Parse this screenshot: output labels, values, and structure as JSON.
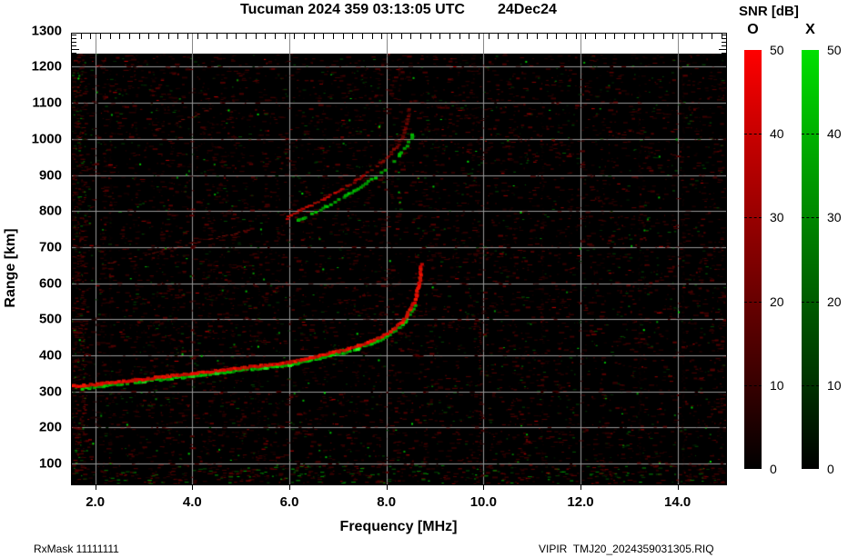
{
  "header": {
    "title_station": "Tucuman 2024 359 03:13:05 UTC",
    "title_date": "24Dec24",
    "snr_label": "SNR [dB]"
  },
  "footer": {
    "left": "RxMask 11111111",
    "right": "VIPIR  TMJ20_2024359031305.RIQ"
  },
  "colorbar": {
    "tick_labels": [
      "50",
      "40",
      "30",
      "20",
      "10",
      "0"
    ],
    "tick_values": [
      50,
      40,
      30,
      20,
      10,
      0
    ],
    "bars": [
      {
        "label": "O",
        "top_color": "#ff0000"
      },
      {
        "label": "X",
        "top_color": "#00e000"
      }
    ]
  },
  "chart_data": {
    "type": "heatmap",
    "title": "Tucuman 2024 359 03:13:05 UTC  24Dec24",
    "xlabel": "Frequency [MHz]",
    "ylabel": "Range [km]",
    "xlim": [
      1.5,
      15.0
    ],
    "ylim": [
      40,
      1295
    ],
    "data_region_top_km": 1237,
    "x_tick_values": [
      2,
      4,
      6,
      8,
      10,
      12,
      14
    ],
    "x_tick_labels": [
      "2.0",
      "4.0",
      "6.0",
      "8.0",
      "10.0",
      "12.0",
      "14.0"
    ],
    "x_minor_step": 0.2,
    "y_tick_values": [
      100,
      200,
      300,
      400,
      500,
      600,
      700,
      800,
      900,
      1000,
      1100,
      1200,
      1300
    ],
    "y_tick_labels": [
      "100",
      "200",
      "300",
      "400",
      "500",
      "600",
      "700",
      "800",
      "900",
      "1000",
      "1100",
      "1200",
      "1300"
    ],
    "y_minor_step": 10,
    "grid": true,
    "grid_color": "#999999",
    "background": "#000000",
    "legend": {
      "title": "SNR [dB]",
      "min": 0,
      "max": 50,
      "o_color": "red",
      "x_color": "green"
    },
    "traces": [
      {
        "name": "F-layer O-mode",
        "color": "red",
        "points": [
          [
            1.5,
            314
          ],
          [
            2.0,
            319
          ],
          [
            2.5,
            327
          ],
          [
            3.0,
            334
          ],
          [
            3.5,
            342
          ],
          [
            4.0,
            349
          ],
          [
            4.5,
            357
          ],
          [
            5.0,
            365
          ],
          [
            5.5,
            372
          ],
          [
            6.0,
            380
          ],
          [
            6.5,
            395
          ],
          [
            7.0,
            410
          ],
          [
            7.4,
            424
          ],
          [
            7.6,
            434
          ],
          [
            7.9,
            452
          ],
          [
            8.1,
            466
          ],
          [
            8.3,
            489
          ],
          [
            8.4,
            505
          ],
          [
            8.5,
            528
          ],
          [
            8.6,
            556
          ],
          [
            8.65,
            584
          ],
          [
            8.7,
            617
          ],
          [
            8.73,
            655
          ]
        ]
      },
      {
        "name": "F-layer X-mode",
        "color": "green",
        "points": [
          [
            1.7,
            307
          ],
          [
            2.0,
            312
          ],
          [
            2.5,
            320
          ],
          [
            3.0,
            327
          ],
          [
            3.5,
            335
          ],
          [
            4.0,
            342
          ],
          [
            4.5,
            350
          ],
          [
            5.0,
            358
          ],
          [
            5.5,
            365
          ],
          [
            6.0,
            373
          ],
          [
            6.5,
            388
          ],
          [
            7.0,
            403
          ],
          [
            7.4,
            417
          ],
          [
            7.6,
            427
          ],
          [
            7.9,
            444
          ],
          [
            8.1,
            458
          ],
          [
            8.25,
            474
          ],
          [
            8.38,
            492
          ],
          [
            8.48,
            512
          ],
          [
            8.55,
            527
          ],
          [
            8.6,
            542
          ]
        ]
      },
      {
        "name": "second-hop O-mode",
        "color": "red",
        "points": [
          [
            5.95,
            780
          ],
          [
            6.2,
            800
          ],
          [
            6.6,
            826
          ],
          [
            7.0,
            854
          ],
          [
            7.4,
            886
          ],
          [
            7.7,
            913
          ],
          [
            8.0,
            945
          ],
          [
            8.2,
            976
          ],
          [
            8.35,
            1006
          ],
          [
            8.42,
            1038
          ],
          [
            8.46,
            1066
          ],
          [
            8.48,
            1090
          ]
        ]
      },
      {
        "name": "second-hop X-mode",
        "color": "green",
        "points": [
          [
            6.15,
            772
          ],
          [
            6.5,
            794
          ],
          [
            6.9,
            822
          ],
          [
            7.3,
            852
          ],
          [
            7.6,
            877
          ],
          [
            7.9,
            907
          ],
          [
            8.15,
            937
          ],
          [
            8.35,
            967
          ],
          [
            8.5,
            997
          ],
          [
            8.58,
            1022
          ]
        ]
      },
      {
        "name": "oblique-echo-low",
        "color": "faint-red",
        "points": [
          [
            2.3,
            654
          ],
          [
            3.0,
            677
          ],
          [
            3.8,
            703
          ],
          [
            4.6,
            728
          ],
          [
            5.35,
            752
          ]
        ]
      },
      {
        "name": "oblique-echo-high",
        "color": "faint-red",
        "points": [
          [
            3.25,
            1027
          ],
          [
            3.6,
            1043
          ],
          [
            4.0,
            1061
          ],
          [
            4.4,
            1084
          ]
        ]
      }
    ],
    "rfi_streaks": [
      {
        "f": 2.3,
        "km": [
          60,
          1200
        ],
        "alpha": 0.1
      },
      {
        "f": 5.35,
        "km": [
          100,
          700
        ],
        "alpha": 0.12
      },
      {
        "f": 8.25,
        "km": [
          1090,
          1195
        ],
        "alpha": 0.3
      },
      {
        "f": 9.92,
        "km": [
          45,
          478
        ],
        "alpha": 0.35
      },
      {
        "f": 11.2,
        "km": [
          80,
          1100
        ],
        "alpha": 0.1
      },
      {
        "f": 13.2,
        "km": [
          60,
          1200
        ],
        "alpha": 0.12
      },
      {
        "f": 14.1,
        "km": [
          60,
          1200
        ],
        "alpha": 0.12
      }
    ],
    "noise": {
      "seed": 42,
      "red_dashes": 5200,
      "green_dashes": 950,
      "bright_red": 170,
      "bright_green": 150
    }
  }
}
